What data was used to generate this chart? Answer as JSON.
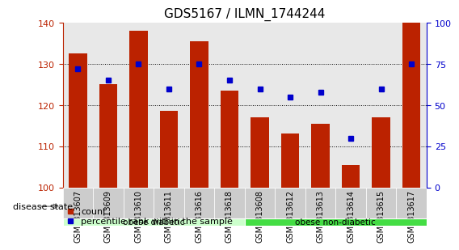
{
  "title": "GDS5167 / ILMN_1744244",
  "samples": [
    "GSM1313607",
    "GSM1313609",
    "GSM1313610",
    "GSM1313611",
    "GSM1313616",
    "GSM1313618",
    "GSM1313608",
    "GSM1313612",
    "GSM1313613",
    "GSM1313614",
    "GSM1313615",
    "GSM1313617"
  ],
  "bar_values": [
    132.5,
    125.0,
    138.0,
    118.5,
    135.5,
    123.5,
    117.0,
    113.0,
    115.5,
    105.5,
    117.0,
    140.0
  ],
  "dot_values": [
    72,
    65,
    75,
    60,
    75,
    65,
    60,
    55,
    58,
    30,
    60,
    75
  ],
  "bar_color": "#BB2200",
  "dot_color": "#0000CC",
  "ylim_left": [
    100,
    140
  ],
  "ylim_right": [
    0,
    100
  ],
  "yticks_left": [
    100,
    110,
    120,
    130,
    140
  ],
  "yticks_right": [
    0,
    25,
    50,
    75,
    100
  ],
  "groups": [
    {
      "label": "obese diabetic",
      "start": 0,
      "end": 6,
      "color": "#CCFFCC"
    },
    {
      "label": "obese non-diabetic",
      "start": 6,
      "end": 12,
      "color": "#44DD44"
    }
  ],
  "group_label": "disease state",
  "legend_count_label": "count",
  "legend_pct_label": "percentile rank within the sample",
  "background_color": "#FFFFFF",
  "plot_bg_color": "#E8E8E8",
  "xtick_bg_color": "#CCCCCC",
  "title_fontsize": 11,
  "tick_label_fontsize": 7,
  "axis_label_fontsize": 8
}
